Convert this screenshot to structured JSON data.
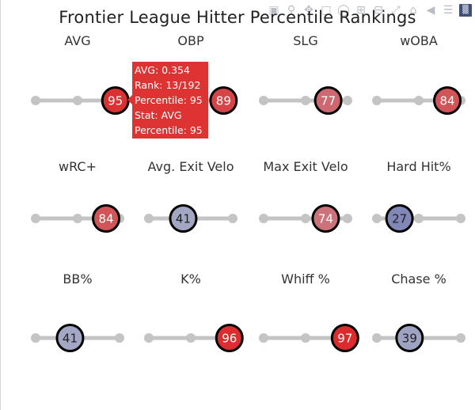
{
  "chart_data": {
    "type": "scatter",
    "title": "Frontier League Hitter Percentile Rankings",
    "panels": [
      {
        "label": "AVG",
        "percentile": 95
      },
      {
        "label": "OBP",
        "percentile": 89
      },
      {
        "label": "SLG",
        "percentile": 77
      },
      {
        "label": "wOBA",
        "percentile": 84
      },
      {
        "label": "wRC+",
        "percentile": 84
      },
      {
        "label": "Avg. Exit Velo",
        "percentile": 41
      },
      {
        "label": "Max Exit Velo",
        "percentile": 74
      },
      {
        "label": "Hard Hit%",
        "percentile": 27
      },
      {
        "label": "BB%",
        "percentile": 41
      },
      {
        "label": "K%",
        "percentile": 96
      },
      {
        "label": "Whiff %",
        "percentile": 97
      },
      {
        "label": "Chase %",
        "percentile": 39
      }
    ],
    "track_markers": [
      0,
      50,
      100
    ],
    "xlim": [
      0,
      100
    ],
    "colors": {
      "low": "#3d4ca0",
      "mid": "#bbbbcc",
      "high": "#dd2222",
      "track": "#c4c4c4",
      "outline": "#000000"
    }
  },
  "tooltip": {
    "lines": [
      "AVG: 0.354",
      "Rank: 13/192",
      "Percentile: 95",
      "Stat: AVG",
      "Percentile: 95"
    ]
  },
  "toolbar": {
    "icons": [
      "camera-icon",
      "zoom-icon",
      "pan-icon",
      "box-select-icon",
      "lasso-icon",
      "zoom-in-icon",
      "zoom-out-icon",
      "autoscale-icon",
      "reset-axes-icon",
      "spike-lines-icon",
      "hover-closest-icon",
      "hover-compare-icon",
      "plotly-logo-icon"
    ]
  }
}
